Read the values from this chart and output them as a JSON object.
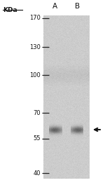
{
  "kda_labels": [
    "170",
    "130",
    "100",
    "70",
    "55",
    "40"
  ],
  "kda_values": [
    170,
    130,
    100,
    70,
    55,
    40
  ],
  "lane_labels": [
    "A",
    "B"
  ],
  "background_color": "#ffffff",
  "gel_bg_light": 0.8,
  "gel_bg_dark": 0.72,
  "band_kda": 60,
  "marker_line_color": "#222222",
  "label_color": "#111111",
  "arrow_color": "#111111",
  "kda_fontsize": 6.0,
  "lane_fontsize": 7.5,
  "kda_label_fontsize": 6.0,
  "fig_width": 1.5,
  "fig_height": 2.74,
  "dpi": 100
}
